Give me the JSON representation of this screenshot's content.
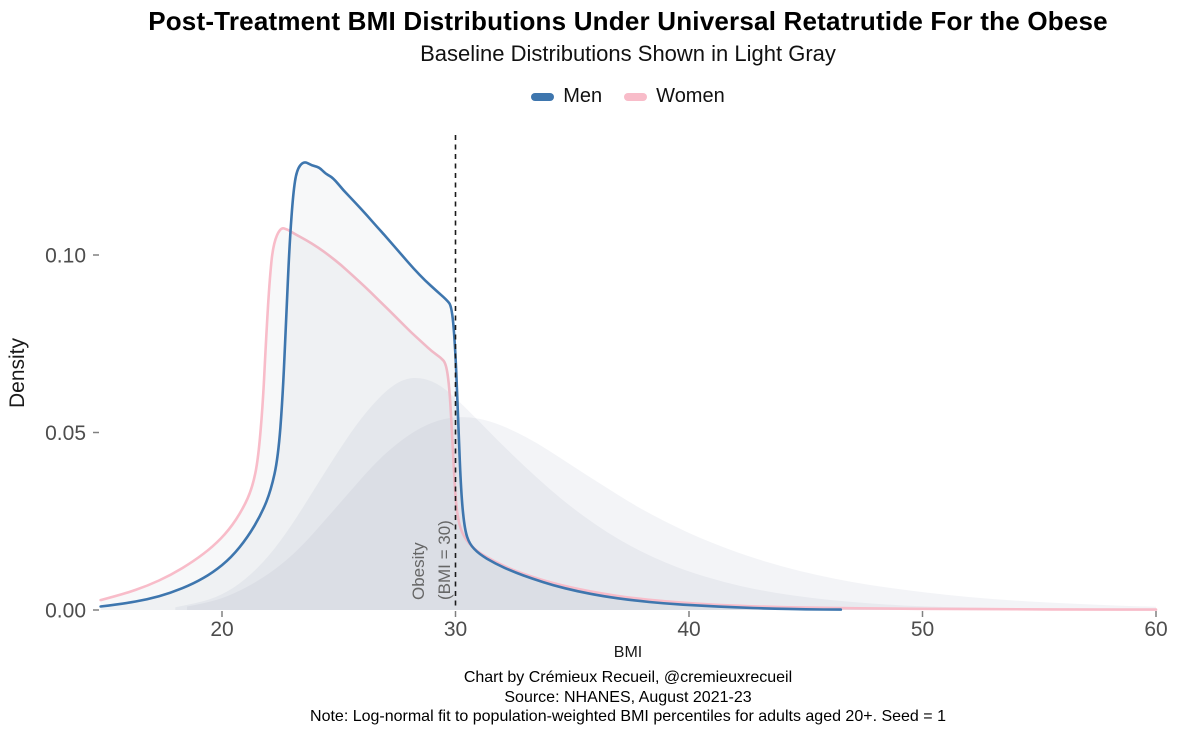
{
  "chart_data": {
    "type": "area",
    "title": "Post-Treatment BMI Distributions Under Universal Retatrutide For the Obese",
    "subtitle": "Baseline Distributions Shown in Light Gray",
    "xlabel": "BMI",
    "ylabel": "Density",
    "xlim": [
      14.8,
      60.2
    ],
    "ylim": [
      0,
      0.135
    ],
    "x_ticks": [
      20,
      30,
      40,
      50,
      60
    ],
    "y_ticks": [
      0,
      0.05,
      0.1
    ],
    "y_tick_labels": [
      "0.00",
      "0.05",
      "0.10"
    ],
    "grid": false,
    "legend_position": "top",
    "background": "#ffffff",
    "tick_color": "#808080",
    "tick_label_color": "#4d4d4d",
    "reference_line": {
      "x": 30,
      "style": "dashed",
      "color": "#1a1a1a"
    },
    "annotation": {
      "line1": "Obesity",
      "line2": "(BMI = 30)",
      "x": 30,
      "color": "#666666"
    },
    "series": [
      {
        "name": "Women baseline",
        "role": "baseline",
        "stroke": false,
        "fill": "#8d98ac",
        "fill_alpha": 0.1,
        "color": "#8d98ac",
        "points": [
          [
            18.5,
            0.001
          ],
          [
            19.5,
            0.0022
          ],
          [
            20.5,
            0.0045
          ],
          [
            21.5,
            0.008
          ],
          [
            22.5,
            0.0125
          ],
          [
            23.5,
            0.0185
          ],
          [
            24.5,
            0.026
          ],
          [
            25.5,
            0.0335
          ],
          [
            26.5,
            0.041
          ],
          [
            27.5,
            0.047
          ],
          [
            28.5,
            0.0515
          ],
          [
            29.5,
            0.054
          ],
          [
            30.5,
            0.0545
          ],
          [
            31.5,
            0.0532
          ],
          [
            32.5,
            0.0505
          ],
          [
            33.5,
            0.047
          ],
          [
            34.5,
            0.0428
          ],
          [
            35.5,
            0.0385
          ],
          [
            36.5,
            0.0343
          ],
          [
            37.5,
            0.0302
          ],
          [
            38.5,
            0.0265
          ],
          [
            39.5,
            0.0232
          ],
          [
            40.5,
            0.0202
          ],
          [
            41.5,
            0.0176
          ],
          [
            42.5,
            0.0152
          ],
          [
            44,
            0.0122
          ],
          [
            45.5,
            0.0098
          ],
          [
            47,
            0.0078
          ],
          [
            48.5,
            0.0063
          ],
          [
            50,
            0.005
          ],
          [
            52,
            0.0036
          ],
          [
            54,
            0.0026
          ],
          [
            56,
            0.0019
          ],
          [
            58,
            0.0013
          ],
          [
            60,
            0.0009
          ]
        ]
      },
      {
        "name": "Men baseline",
        "role": "baseline",
        "stroke": false,
        "fill": "#8d98ac",
        "fill_alpha": 0.1,
        "color": "#8d98ac",
        "points": [
          [
            18,
            0.0008
          ],
          [
            19,
            0.002
          ],
          [
            20,
            0.0042
          ],
          [
            21,
            0.0085
          ],
          [
            22,
            0.015
          ],
          [
            23,
            0.024
          ],
          [
            24,
            0.0345
          ],
          [
            25,
            0.045
          ],
          [
            26,
            0.0545
          ],
          [
            27,
            0.0618
          ],
          [
            27.8,
            0.0652
          ],
          [
            28.6,
            0.0655
          ],
          [
            29.4,
            0.0632
          ],
          [
            30.2,
            0.0585
          ],
          [
            31,
            0.0532
          ],
          [
            32,
            0.0465
          ],
          [
            33,
            0.0402
          ],
          [
            34,
            0.0342
          ],
          [
            35,
            0.0288
          ],
          [
            36,
            0.024
          ],
          [
            37,
            0.0198
          ],
          [
            38,
            0.0163
          ],
          [
            39,
            0.0133
          ],
          [
            40,
            0.0108
          ],
          [
            41.5,
            0.0078
          ],
          [
            43,
            0.0056
          ],
          [
            44.5,
            0.004
          ],
          [
            46,
            0.0028
          ],
          [
            48,
            0.0017
          ],
          [
            50,
            0.001
          ],
          [
            53,
            0.0005
          ],
          [
            56,
            0.0003
          ],
          [
            60,
            0.0001
          ]
        ]
      },
      {
        "name": "Women",
        "role": "post-treatment",
        "stroke": true,
        "fill": "#8d98ac",
        "fill_alpha": 0.07,
        "color": "#f8bcc9",
        "points": [
          [
            14.8,
            0.0028
          ],
          [
            15.8,
            0.0045
          ],
          [
            16.8,
            0.0068
          ],
          [
            17.8,
            0.0098
          ],
          [
            18.8,
            0.0138
          ],
          [
            19.6,
            0.0178
          ],
          [
            20.3,
            0.0225
          ],
          [
            20.9,
            0.0285
          ],
          [
            21.3,
            0.0345
          ],
          [
            21.55,
            0.0425
          ],
          [
            21.75,
            0.058
          ],
          [
            21.9,
            0.078
          ],
          [
            22.05,
            0.094
          ],
          [
            22.2,
            0.1032
          ],
          [
            22.5,
            0.1078
          ],
          [
            22.8,
            0.1072
          ],
          [
            23.1,
            0.106
          ],
          [
            23.6,
            0.1042
          ],
          [
            24.1,
            0.1022
          ],
          [
            24.6,
            0.0998
          ],
          [
            25.1,
            0.0972
          ],
          [
            25.6,
            0.0942
          ],
          [
            26.1,
            0.0912
          ],
          [
            26.6,
            0.088
          ],
          [
            27.1,
            0.0848
          ],
          [
            27.6,
            0.0815
          ],
          [
            28.1,
            0.0782
          ],
          [
            28.6,
            0.0752
          ],
          [
            29,
            0.0728
          ],
          [
            29.35,
            0.0712
          ],
          [
            29.6,
            0.0695
          ],
          [
            29.75,
            0.062
          ],
          [
            29.88,
            0.046
          ],
          [
            30,
            0.031
          ],
          [
            30.15,
            0.0238
          ],
          [
            30.45,
            0.0196
          ],
          [
            30.9,
            0.0166
          ],
          [
            31.6,
            0.0139
          ],
          [
            32.4,
            0.0114
          ],
          [
            33.2,
            0.0095
          ],
          [
            34.1,
            0.0077
          ],
          [
            35.1,
            0.0061
          ],
          [
            36.2,
            0.0047
          ],
          [
            37.5,
            0.0034
          ],
          [
            39,
            0.0024
          ],
          [
            40.5,
            0.0017
          ],
          [
            42,
            0.0012
          ],
          [
            44,
            0.0008
          ],
          [
            46,
            0.00055
          ],
          [
            48.5,
            0.0004
          ],
          [
            51,
            0.00028
          ],
          [
            54,
            0.0002
          ],
          [
            57,
            0.00014
          ],
          [
            60,
            0.0001
          ]
        ]
      },
      {
        "name": "Men",
        "role": "post-treatment",
        "stroke": true,
        "fill": "#8d98ac",
        "fill_alpha": 0.07,
        "color": "#3e76ae",
        "points": [
          [
            14.8,
            0.001
          ],
          [
            15.8,
            0.0018
          ],
          [
            16.8,
            0.003
          ],
          [
            17.8,
            0.0048
          ],
          [
            18.8,
            0.0075
          ],
          [
            19.6,
            0.0105
          ],
          [
            20.4,
            0.0148
          ],
          [
            21.1,
            0.0205
          ],
          [
            21.7,
            0.0272
          ],
          [
            22.1,
            0.0338
          ],
          [
            22.4,
            0.0428
          ],
          [
            22.6,
            0.06
          ],
          [
            22.75,
            0.083
          ],
          [
            22.9,
            0.104
          ],
          [
            23.05,
            0.1175
          ],
          [
            23.2,
            0.124
          ],
          [
            23.5,
            0.1265
          ],
          [
            23.85,
            0.1252
          ],
          [
            24.15,
            0.1248
          ],
          [
            24.45,
            0.1228
          ],
          [
            24.75,
            0.1218
          ],
          [
            25.2,
            0.1182
          ],
          [
            25.7,
            0.1148
          ],
          [
            26.2,
            0.1112
          ],
          [
            26.7,
            0.1075
          ],
          [
            27.2,
            0.1038
          ],
          [
            27.7,
            0.1
          ],
          [
            28.2,
            0.0962
          ],
          [
            28.7,
            0.0928
          ],
          [
            29.2,
            0.0898
          ],
          [
            29.6,
            0.0875
          ],
          [
            29.85,
            0.0855
          ],
          [
            30,
            0.073
          ],
          [
            30.12,
            0.052
          ],
          [
            30.25,
            0.032
          ],
          [
            30.4,
            0.0225
          ],
          [
            30.6,
            0.0186
          ],
          [
            31,
            0.0158
          ],
          [
            31.7,
            0.0131
          ],
          [
            32.5,
            0.0107
          ],
          [
            33.3,
            0.0088
          ],
          [
            34.2,
            0.0069
          ],
          [
            35.2,
            0.0053
          ],
          [
            36.3,
            0.0039
          ],
          [
            37.6,
            0.0027
          ],
          [
            39,
            0.0018
          ],
          [
            40.5,
            0.0012
          ],
          [
            42,
            0.0007
          ],
          [
            43.5,
            0.0004
          ],
          [
            45,
            0.0002
          ],
          [
            46.5,
            0.0001
          ]
        ]
      }
    ]
  },
  "legend": {
    "items": [
      {
        "label": "Men",
        "color": "#3e76ae"
      },
      {
        "label": "Women",
        "color": "#f8bcc9"
      }
    ]
  },
  "captions": [
    "Chart by Crémieux Recueil, @cremieuxrecueil",
    "Source: NHANES, August 2021-23",
    "Note: Log-normal fit to population-weighted BMI percentiles for adults aged 20+. Seed = 1"
  ]
}
